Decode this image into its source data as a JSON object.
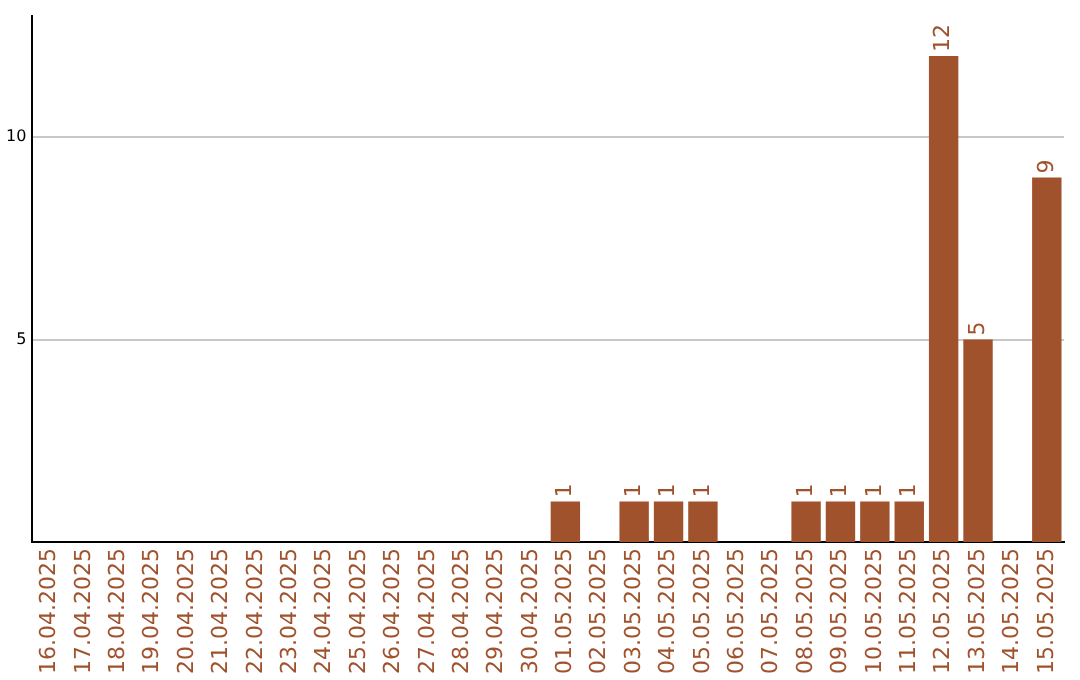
{
  "chart_data": {
    "type": "bar",
    "categories": [
      "16.04.2025",
      "17.04.2025",
      "18.04.2025",
      "19.04.2025",
      "20.04.2025",
      "21.04.2025",
      "22.04.2025",
      "23.04.2025",
      "24.04.2025",
      "25.04.2025",
      "26.04.2025",
      "27.04.2025",
      "28.04.2025",
      "29.04.2025",
      "30.04.2025",
      "01.05.2025",
      "02.05.2025",
      "03.05.2025",
      "04.05.2025",
      "05.05.2025",
      "06.05.2025",
      "07.05.2025",
      "08.05.2025",
      "09.05.2025",
      "10.05.2025",
      "11.05.2025",
      "12.05.2025",
      "13.05.2025",
      "14.05.2025",
      "15.05.2025"
    ],
    "values": [
      0,
      0,
      0,
      0,
      0,
      0,
      0,
      0,
      0,
      0,
      0,
      0,
      0,
      0,
      0,
      1,
      0,
      1,
      1,
      1,
      0,
      0,
      1,
      1,
      1,
      1,
      12,
      5,
      0,
      9
    ],
    "value_labels": [
      null,
      null,
      null,
      null,
      null,
      null,
      null,
      null,
      null,
      null,
      null,
      null,
      null,
      null,
      null,
      "1",
      null,
      "1",
      "1",
      "1",
      null,
      null,
      "1",
      "1",
      "1",
      "1",
      "12",
      "5",
      null,
      "9"
    ],
    "color": "#a0522d",
    "ylim": [
      0,
      13
    ],
    "yticks": [
      5,
      10
    ],
    "grid": "y",
    "legend": false
  }
}
